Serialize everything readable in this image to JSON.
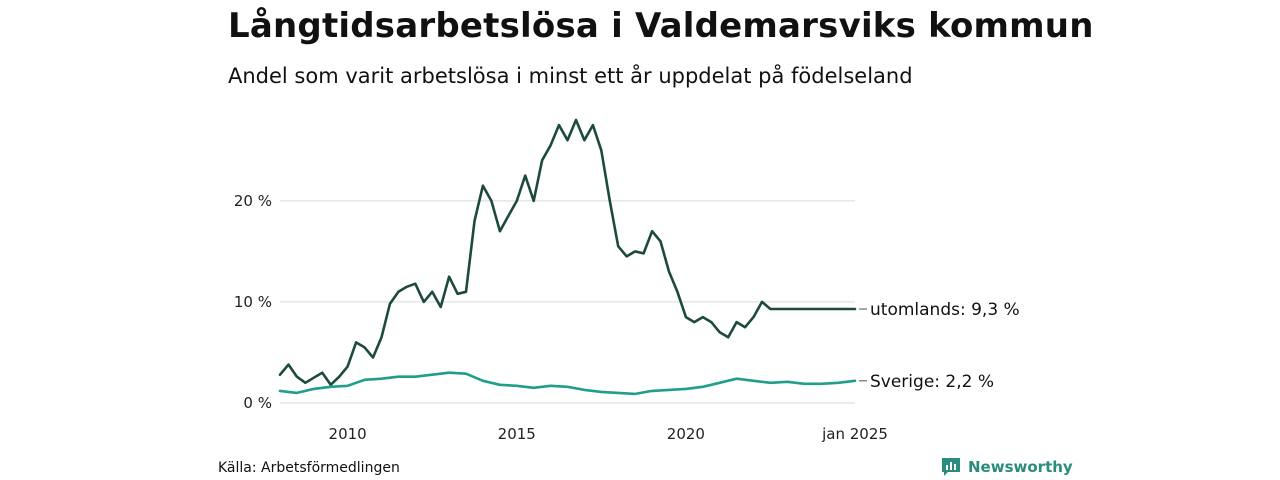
{
  "header": {
    "title": "Långtidsarbetslösa i Valdemarsviks kommun",
    "subtitle": "Andel som varit arbetslösa i minst ett år uppdelat på födelseland"
  },
  "footer": {
    "source": "Källa: Arbetsförmedlingen",
    "brand": "Newsworthy"
  },
  "colors": {
    "utomlands": "#1d4a40",
    "sverige": "#1f9e8a",
    "grid": "#d9d9d9",
    "brand": "#2a8c7c"
  },
  "chart_data": {
    "type": "line",
    "title": "Långtidsarbetslösa i Valdemarsviks kommun",
    "xlabel": "",
    "ylabel": "",
    "xlim": [
      2008.0,
      2025.0
    ],
    "ylim": [
      0,
      28
    ],
    "yticks": [
      0,
      10,
      20
    ],
    "ytick_labels": [
      "0 %",
      "10 %",
      "20 %"
    ],
    "xticks": [
      2010,
      2015,
      2020,
      2025.0
    ],
    "xtick_labels": [
      "2010",
      "2015",
      "2020",
      "jan 2025"
    ],
    "series": [
      {
        "name": "utomlands",
        "end_label": "utomlands: 9,3 %",
        "x": [
          2008.0,
          2008.25,
          2008.5,
          2008.75,
          2009.0,
          2009.25,
          2009.5,
          2009.75,
          2010.0,
          2010.25,
          2010.5,
          2010.75,
          2011.0,
          2011.25,
          2011.5,
          2011.75,
          2012.0,
          2012.25,
          2012.5,
          2012.75,
          2013.0,
          2013.25,
          2013.5,
          2013.75,
          2014.0,
          2014.25,
          2014.5,
          2014.75,
          2015.0,
          2015.25,
          2015.5,
          2015.75,
          2016.0,
          2016.25,
          2016.5,
          2016.75,
          2017.0,
          2017.25,
          2017.5,
          2017.75,
          2018.0,
          2018.25,
          2018.5,
          2018.75,
          2019.0,
          2019.25,
          2019.5,
          2019.75,
          2020.0,
          2020.25,
          2020.5,
          2020.75,
          2021.0,
          2021.25,
          2021.5,
          2021.75,
          2022.0,
          2022.25,
          2022.5,
          2022.75,
          2023.0,
          2023.25,
          2023.5,
          2023.75,
          2024.0,
          2024.25,
          2024.5,
          2024.75,
          2025.0
        ],
        "values": [
          2.8,
          3.8,
          2.6,
          2.0,
          2.5,
          3.0,
          1.8,
          2.6,
          3.6,
          6.0,
          5.5,
          4.5,
          6.5,
          9.8,
          11.0,
          11.5,
          11.8,
          10.0,
          11.0,
          9.5,
          12.5,
          10.8,
          11.0,
          18.0,
          21.5,
          20.0,
          17.0,
          18.5,
          20.0,
          22.5,
          20.0,
          24.0,
          25.5,
          27.5,
          26.0,
          28.0,
          26.0,
          27.5,
          25.0,
          20.0,
          15.5,
          14.5,
          15.0,
          14.8,
          17.0,
          16.0,
          13.0,
          11.0,
          8.5,
          8.0,
          8.5,
          8.0,
          7.0,
          6.5,
          8.0,
          7.5,
          8.5,
          10.0,
          9.3,
          9.3,
          9.3,
          9.3,
          9.3,
          9.3,
          9.3,
          9.3,
          9.3,
          9.3,
          9.3
        ]
      },
      {
        "name": "Sverige",
        "end_label": "Sverige: 2,2 %",
        "x": [
          2008.0,
          2008.5,
          2009.0,
          2009.5,
          2010.0,
          2010.5,
          2011.0,
          2011.5,
          2012.0,
          2012.5,
          2013.0,
          2013.5,
          2014.0,
          2014.5,
          2015.0,
          2015.5,
          2016.0,
          2016.5,
          2017.0,
          2017.5,
          2018.0,
          2018.5,
          2019.0,
          2019.5,
          2020.0,
          2020.5,
          2021.0,
          2021.5,
          2022.0,
          2022.5,
          2023.0,
          2023.5,
          2024.0,
          2024.5,
          2025.0
        ],
        "values": [
          1.2,
          1.0,
          1.4,
          1.6,
          1.7,
          2.3,
          2.4,
          2.6,
          2.6,
          2.8,
          3.0,
          2.9,
          2.2,
          1.8,
          1.7,
          1.5,
          1.7,
          1.6,
          1.3,
          1.1,
          1.0,
          0.9,
          1.2,
          1.3,
          1.4,
          1.6,
          2.0,
          2.4,
          2.2,
          2.0,
          2.1,
          1.9,
          1.9,
          2.0,
          2.2
        ]
      }
    ]
  }
}
